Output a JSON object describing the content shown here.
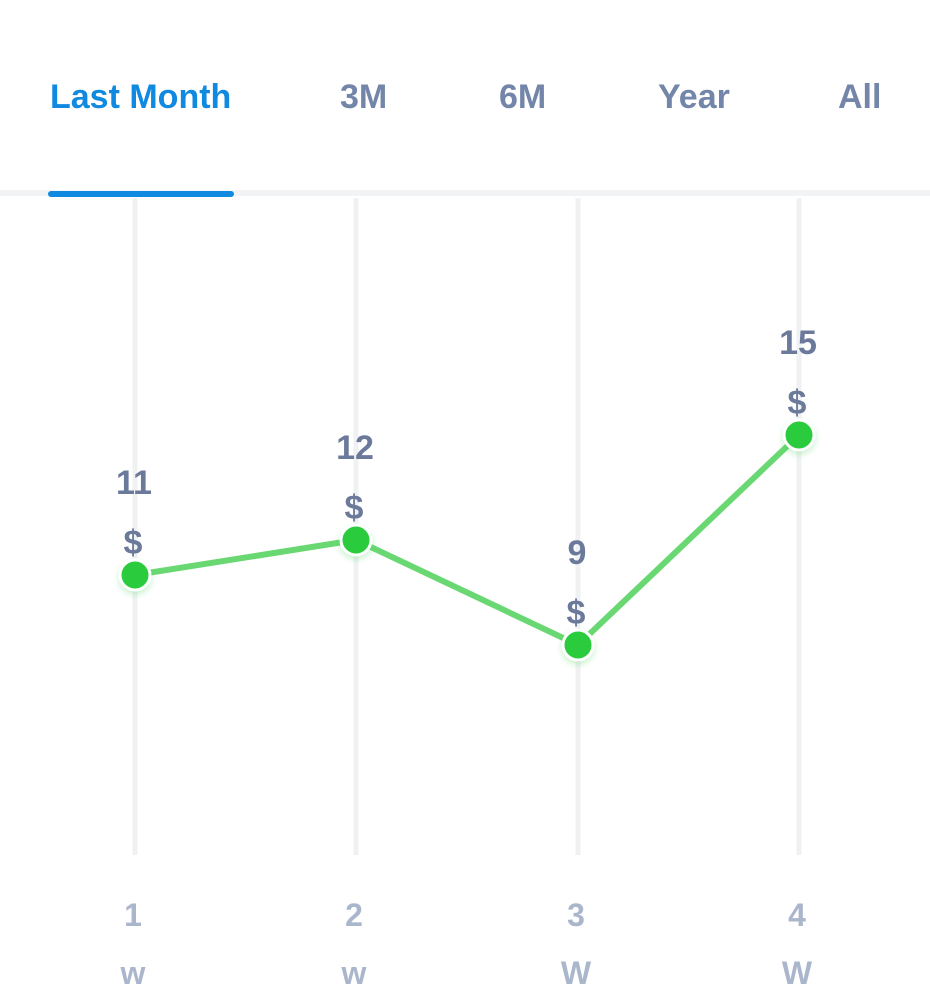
{
  "tabs": [
    {
      "label": "Last Month",
      "active": true
    },
    {
      "label": "3M",
      "active": false
    },
    {
      "label": "6M",
      "active": false
    },
    {
      "label": "Year",
      "active": false
    },
    {
      "label": "All",
      "active": false
    }
  ],
  "currency_symbol": "$",
  "colors": {
    "accent": "#1089e0",
    "line": "#6ad872",
    "point": "#29cc3c",
    "tab_inactive": "#7385a8",
    "value_label": "#6b7a9a",
    "axis_label": "#aab6cc",
    "gridline": "#f0f1f3"
  },
  "chart_data": {
    "type": "line",
    "categories": [
      {
        "number": "1",
        "unit": "w"
      },
      {
        "number": "2",
        "unit": "w"
      },
      {
        "number": "3",
        "unit": "W"
      },
      {
        "number": "4",
        "unit": "W"
      }
    ],
    "values": [
      11,
      12,
      9,
      15
    ],
    "value_labels": [
      "11",
      "12",
      "9",
      "15"
    ],
    "title": "",
    "xlabel": "",
    "ylabel": "",
    "grid": "vertical"
  }
}
